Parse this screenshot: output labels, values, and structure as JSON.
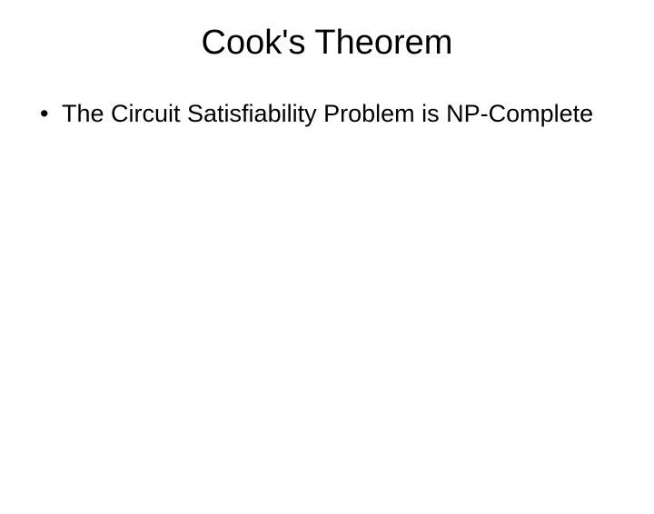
{
  "slide": {
    "title": "Cook's Theorem",
    "bullets": [
      "The Circuit Satisfiability Problem is NP-Complete"
    ]
  },
  "style": {
    "background_color": "#ffffff",
    "text_color": "#000000",
    "title_fontsize": 38,
    "body_fontsize": 27,
    "font_family": "Arial"
  }
}
